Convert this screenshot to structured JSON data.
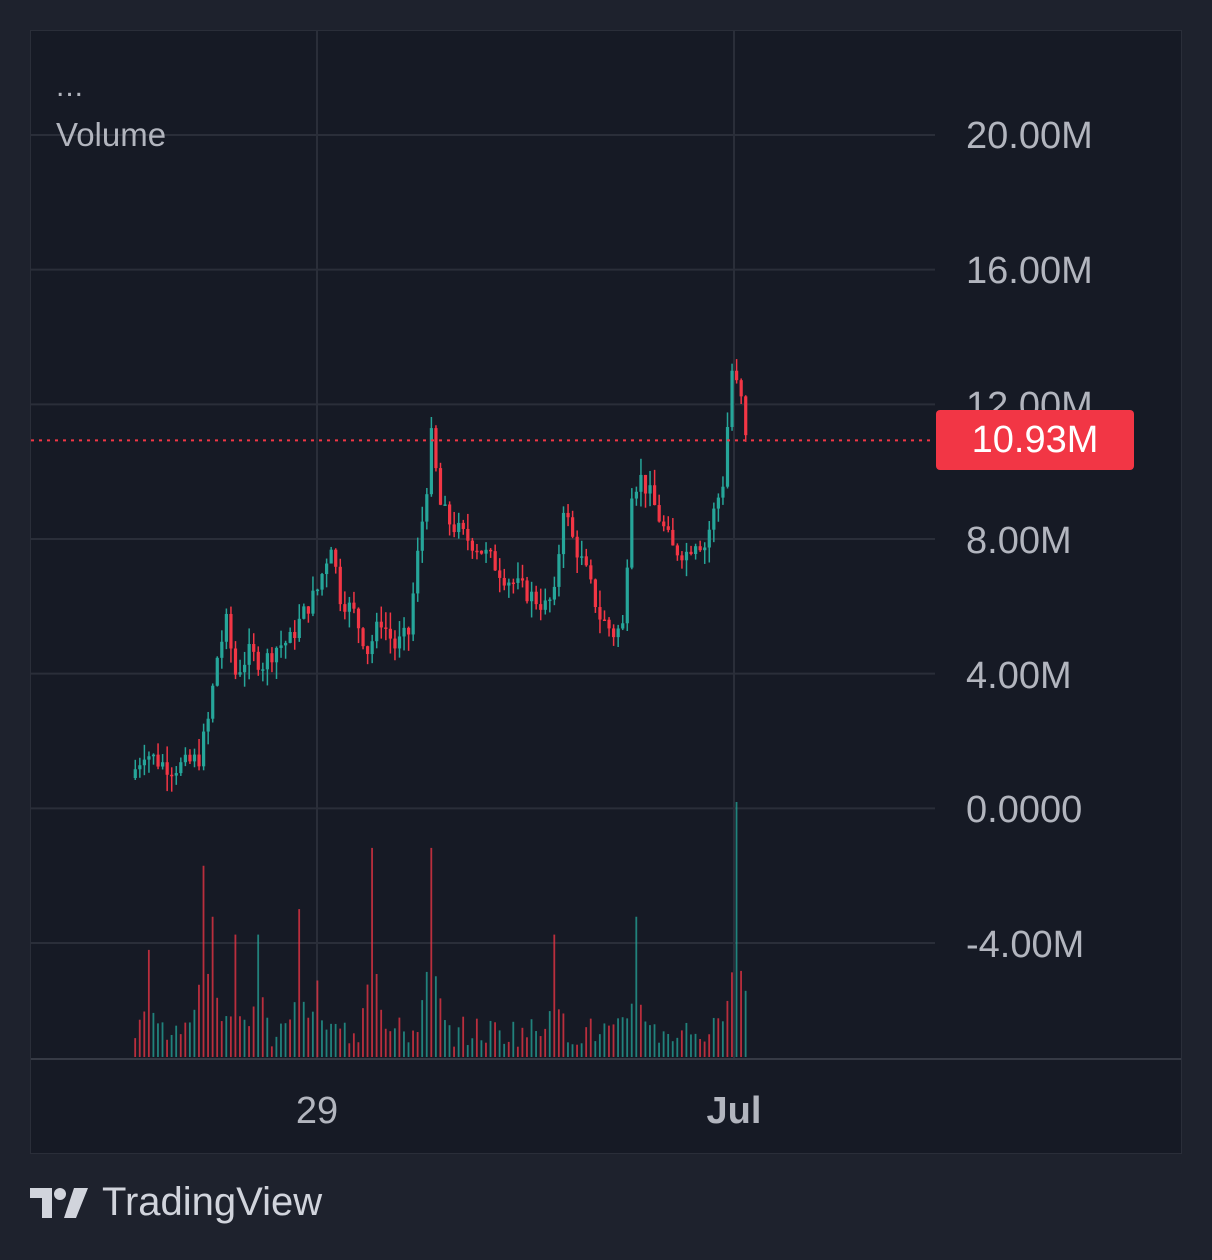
{
  "legend": {
    "dots": "...",
    "volume": "Volume"
  },
  "price_axis": [
    "20.00M",
    "16.00M",
    "12.00M",
    "8.00M",
    "4.00M",
    "0.0000",
    "-4.00M"
  ],
  "time_axis": {
    "left": "29",
    "right": "Jul"
  },
  "last_price": "10.93M",
  "brand": "TradingView",
  "colors": {
    "background": "#161a25",
    "grid": "#2a2e39",
    "up": "#26a69a",
    "down": "#f23645",
    "text": "#b2b5be"
  },
  "chart_data": {
    "type": "candlestick",
    "price_axis_labels": [
      "20.00M",
      "16.00M",
      "12.00M",
      "8.00M",
      "4.00M",
      "0.0000",
      "-4.00M"
    ],
    "ylim": [
      -4.0,
      20.0
    ],
    "time_labels": [
      "29",
      "Jul"
    ],
    "last_value": 10.93,
    "price_path": [
      [
        0,
        0.9
      ],
      [
        3,
        1.7
      ],
      [
        6,
        1.4
      ],
      [
        9,
        1.2
      ],
      [
        12,
        1.3
      ],
      [
        15,
        1.5
      ],
      [
        17,
        2.6
      ],
      [
        19,
        4.5
      ],
      [
        21,
        5.5
      ],
      [
        23,
        4.0
      ],
      [
        26,
        4.6
      ],
      [
        29,
        4.3
      ],
      [
        32,
        4.8
      ],
      [
        35,
        5.0
      ],
      [
        38,
        5.8
      ],
      [
        41,
        6.5
      ],
      [
        44,
        7.9
      ],
      [
        46,
        6.3
      ],
      [
        49,
        5.8
      ],
      [
        52,
        4.7
      ],
      [
        55,
        5.6
      ],
      [
        58,
        4.8
      ],
      [
        61,
        5.2
      ],
      [
        63,
        7.5
      ],
      [
        65,
        9.6
      ],
      [
        66,
        11.0
      ],
      [
        68,
        9.0
      ],
      [
        70,
        8.5
      ],
      [
        73,
        8.1
      ],
      [
        76,
        7.8
      ],
      [
        79,
        7.4
      ],
      [
        82,
        6.9
      ],
      [
        85,
        6.6
      ],
      [
        88,
        6.3
      ],
      [
        91,
        6.0
      ],
      [
        93,
        6.3
      ],
      [
        95,
        9.0
      ],
      [
        97,
        8.0
      ],
      [
        100,
        7.0
      ],
      [
        103,
        5.7
      ],
      [
        106,
        5.2
      ],
      [
        108,
        5.4
      ],
      [
        110,
        9.5
      ],
      [
        112,
        9.8
      ],
      [
        114,
        9.3
      ],
      [
        117,
        8.3
      ],
      [
        119,
        7.7
      ],
      [
        122,
        7.6
      ],
      [
        124,
        8.0
      ],
      [
        126,
        7.8
      ],
      [
        128,
        8.8
      ],
      [
        130,
        9.7
      ],
      [
        132,
        13.0
      ],
      [
        134,
        12.1
      ],
      [
        135,
        10.93
      ]
    ],
    "volume_spikes": [
      [
        3,
        0.42
      ],
      [
        15,
        0.75
      ],
      [
        17,
        0.55
      ],
      [
        22,
        0.48
      ],
      [
        27,
        0.48
      ],
      [
        36,
        0.58
      ],
      [
        40,
        0.3
      ],
      [
        52,
        0.82
      ],
      [
        65,
        0.82
      ],
      [
        92,
        0.48
      ],
      [
        110,
        0.55
      ],
      [
        132,
        1.0
      ]
    ],
    "candle_count": 135
  }
}
